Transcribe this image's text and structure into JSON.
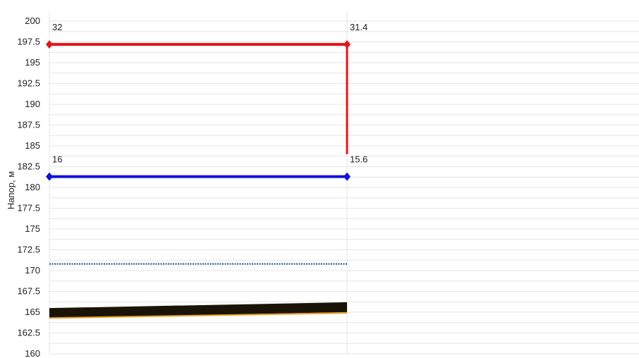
{
  "chart_data": {
    "type": "line",
    "title": "",
    "xlabel": "",
    "ylabel": "Напор, м",
    "ylim": [
      160,
      200
    ],
    "xlim": [
      0,
      1
    ],
    "yticks": [
      "200",
      "197.5",
      "195",
      "192.5",
      "190",
      "187.5",
      "185",
      "182.5",
      "180",
      "177.5",
      "175",
      "172.5",
      "170",
      "167.5",
      "165",
      "162.5",
      "160"
    ],
    "grid": true,
    "legend": "none",
    "series": [
      {
        "color": "#e8141b",
        "style": "solid-markers",
        "points": [
          {
            "x": 0,
            "y": 197.2,
            "label": "32"
          },
          {
            "x": 1,
            "y": 197.2,
            "label": "31.4"
          }
        ]
      },
      {
        "color": "#e8141b",
        "style": "solid",
        "points": [
          {
            "x": 1,
            "y": 197.2
          },
          {
            "x": 1,
            "y": 184.0
          }
        ]
      },
      {
        "color": "#1010e0",
        "style": "solid-markers",
        "points": [
          {
            "x": 0,
            "y": 181.3,
            "label": "16"
          },
          {
            "x": 1,
            "y": 181.3,
            "label": "15.6"
          }
        ]
      },
      {
        "color": "#5a86b0",
        "style": "dotted",
        "points": [
          {
            "x": 0,
            "y": 170.8
          },
          {
            "x": 1,
            "y": 170.8
          }
        ]
      },
      {
        "color": "#1a1408",
        "style": "band",
        "points": [
          {
            "x": 0,
            "y": 164.9
          },
          {
            "x": 1,
            "y": 165.6
          }
        ]
      },
      {
        "color": "#e8a020",
        "style": "solid",
        "points": [
          {
            "x": 0,
            "y": 164.3
          },
          {
            "x": 1,
            "y": 164.9
          }
        ]
      }
    ]
  }
}
